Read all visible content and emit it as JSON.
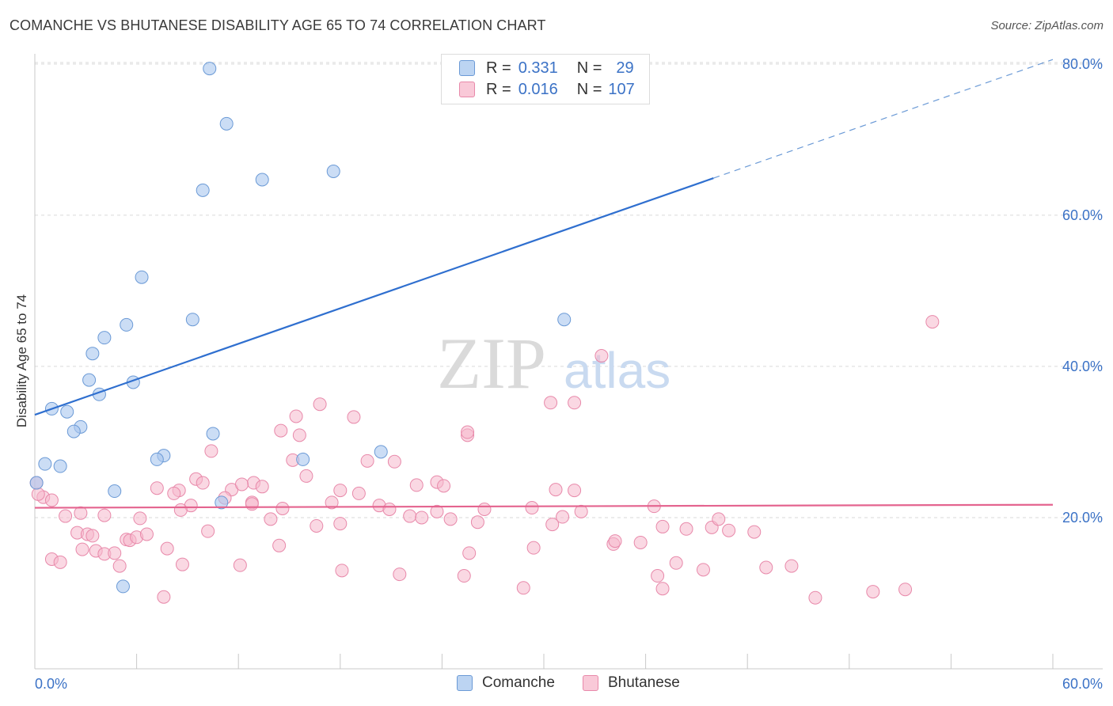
{
  "header": {
    "title": "COMANCHE VS BHUTANESE DISABILITY AGE 65 TO 74 CORRELATION CHART",
    "source": "Source: ZipAtlas.com"
  },
  "legend": {
    "rows": [
      {
        "r_label": "R =",
        "r_value": "0.331",
        "n_label": "N =",
        "n_value": "29"
      },
      {
        "r_label": "R =",
        "r_value": "0.016",
        "n_label": "N =",
        "n_value": "107"
      }
    ],
    "bottom": [
      "Comanche",
      "Bhutanese"
    ]
  },
  "watermark": {
    "zip": "ZIP",
    "atlas": "atlas"
  },
  "colors": {
    "comanche_fill": "#a9c7ef",
    "comanche_stroke": "#6b9ad6",
    "comanche_line": "#2f6fcf",
    "bhutanese_fill": "#f6b8cc",
    "bhutanese_stroke": "#e889aa",
    "bhutanese_line": "#e4648f",
    "tick_label": "#3b72c6",
    "grid": "#d9d9d9"
  },
  "chart_data": {
    "type": "scatter",
    "title": "COMANCHE VS BHUTANESE DISABILITY AGE 65 TO 74 CORRELATION CHART",
    "xlabel": "",
    "ylabel": "Disability Age 65 to 74",
    "xlim": [
      0,
      60
    ],
    "ylim": [
      0,
      80
    ],
    "x_tick_labels": [
      "0.0%",
      "60.0%"
    ],
    "y_ticks": [
      20,
      40,
      60,
      80
    ],
    "y_tick_labels": [
      "20.0%",
      "40.0%",
      "60.0%",
      "80.0%"
    ],
    "grid": true,
    "legend_position": "top-center",
    "series": [
      {
        "name": "Comanche",
        "points": [
          [
            10.3,
            79.4
          ],
          [
            11.3,
            72.1
          ],
          [
            9.9,
            63.3
          ],
          [
            13.4,
            64.7
          ],
          [
            17.6,
            65.8
          ],
          [
            6.3,
            51.8
          ],
          [
            5.4,
            45.5
          ],
          [
            9.3,
            46.2
          ],
          [
            31.2,
            46.2
          ],
          [
            4.1,
            43.8
          ],
          [
            3.4,
            41.7
          ],
          [
            3.2,
            38.2
          ],
          [
            5.8,
            37.9
          ],
          [
            3.8,
            36.3
          ],
          [
            1.0,
            34.4
          ],
          [
            1.9,
            34.0
          ],
          [
            2.7,
            32.0
          ],
          [
            2.3,
            31.4
          ],
          [
            10.5,
            31.1
          ],
          [
            7.6,
            28.2
          ],
          [
            7.2,
            27.7
          ],
          [
            15.8,
            27.7
          ],
          [
            20.4,
            28.7
          ],
          [
            0.6,
            27.1
          ],
          [
            1.5,
            26.8
          ],
          [
            0.1,
            24.6
          ],
          [
            4.7,
            23.5
          ],
          [
            11.0,
            22.0
          ],
          [
            5.2,
            10.9
          ]
        ],
        "trend": {
          "x": [
            0,
            40
          ],
          "y": [
            33.6,
            64.9
          ],
          "dashed_extension_to": [
            60,
            80.6
          ]
        }
      },
      {
        "name": "Bhutanese",
        "points": [
          [
            52.9,
            45.9
          ],
          [
            33.4,
            41.4
          ],
          [
            16.8,
            35.0
          ],
          [
            30.4,
            35.2
          ],
          [
            31.8,
            35.2
          ],
          [
            15.4,
            33.4
          ],
          [
            18.8,
            33.3
          ],
          [
            14.5,
            31.5
          ],
          [
            15.6,
            30.9
          ],
          [
            25.5,
            30.9
          ],
          [
            25.5,
            31.3
          ],
          [
            10.4,
            28.8
          ],
          [
            15.2,
            27.6
          ],
          [
            19.6,
            27.5
          ],
          [
            21.2,
            27.4
          ],
          [
            16.0,
            25.5
          ],
          [
            9.5,
            25.1
          ],
          [
            9.9,
            24.6
          ],
          [
            12.9,
            24.6
          ],
          [
            13.4,
            24.1
          ],
          [
            11.6,
            23.7
          ],
          [
            12.2,
            24.4
          ],
          [
            7.2,
            23.9
          ],
          [
            8.5,
            23.6
          ],
          [
            8.2,
            23.2
          ],
          [
            11.2,
            22.6
          ],
          [
            18.0,
            23.6
          ],
          [
            19.1,
            23.2
          ],
          [
            22.5,
            24.3
          ],
          [
            23.7,
            24.7
          ],
          [
            24.1,
            24.2
          ],
          [
            30.7,
            23.7
          ],
          [
            31.8,
            23.6
          ],
          [
            17.5,
            22.0
          ],
          [
            0.5,
            22.7
          ],
          [
            1.0,
            22.3
          ],
          [
            9.2,
            21.6
          ],
          [
            12.8,
            22.0
          ],
          [
            14.6,
            21.2
          ],
          [
            20.3,
            21.6
          ],
          [
            20.9,
            21.1
          ],
          [
            29.3,
            21.3
          ],
          [
            32.2,
            20.8
          ],
          [
            36.5,
            21.5
          ],
          [
            2.7,
            20.6
          ],
          [
            1.8,
            20.2
          ],
          [
            4.1,
            20.3
          ],
          [
            6.2,
            19.9
          ],
          [
            13.9,
            19.8
          ],
          [
            16.6,
            18.9
          ],
          [
            18.0,
            19.2
          ],
          [
            22.1,
            20.2
          ],
          [
            22.8,
            20.0
          ],
          [
            24.5,
            19.8
          ],
          [
            26.1,
            19.4
          ],
          [
            30.5,
            19.1
          ],
          [
            37.0,
            18.8
          ],
          [
            38.4,
            18.5
          ],
          [
            39.9,
            18.7
          ],
          [
            40.3,
            19.8
          ],
          [
            40.9,
            18.3
          ],
          [
            42.4,
            18.1
          ],
          [
            2.5,
            18.0
          ],
          [
            3.1,
            17.8
          ],
          [
            3.4,
            17.6
          ],
          [
            5.4,
            17.1
          ],
          [
            5.6,
            17.0
          ],
          [
            6.0,
            17.4
          ],
          [
            6.6,
            17.8
          ],
          [
            10.2,
            18.2
          ],
          [
            14.4,
            16.3
          ],
          [
            2.8,
            15.8
          ],
          [
            3.6,
            15.6
          ],
          [
            4.1,
            15.2
          ],
          [
            4.7,
            15.3
          ],
          [
            7.8,
            15.9
          ],
          [
            25.6,
            15.3
          ],
          [
            29.4,
            16.0
          ],
          [
            34.1,
            16.5
          ],
          [
            35.7,
            16.7
          ],
          [
            1.0,
            14.5
          ],
          [
            1.5,
            14.1
          ],
          [
            5.0,
            13.6
          ],
          [
            8.7,
            13.8
          ],
          [
            12.1,
            13.7
          ],
          [
            18.1,
            13.0
          ],
          [
            21.5,
            12.5
          ],
          [
            25.3,
            12.3
          ],
          [
            36.7,
            12.3
          ],
          [
            39.4,
            13.1
          ],
          [
            28.8,
            10.7
          ],
          [
            37.0,
            10.6
          ],
          [
            43.1,
            13.4
          ],
          [
            49.4,
            10.2
          ],
          [
            51.3,
            10.5
          ],
          [
            46.0,
            9.4
          ],
          [
            7.6,
            9.5
          ],
          [
            8.6,
            21.0
          ],
          [
            12.8,
            21.8
          ],
          [
            23.7,
            20.8
          ],
          [
            26.5,
            21.1
          ],
          [
            31.1,
            20.1
          ],
          [
            34.2,
            16.9
          ],
          [
            37.8,
            14.0
          ],
          [
            44.6,
            13.6
          ],
          [
            0.2,
            23.1
          ],
          [
            0.1,
            24.6
          ]
        ],
        "trend": {
          "x": [
            0,
            60
          ],
          "y": [
            21.3,
            21.7
          ]
        }
      }
    ]
  }
}
